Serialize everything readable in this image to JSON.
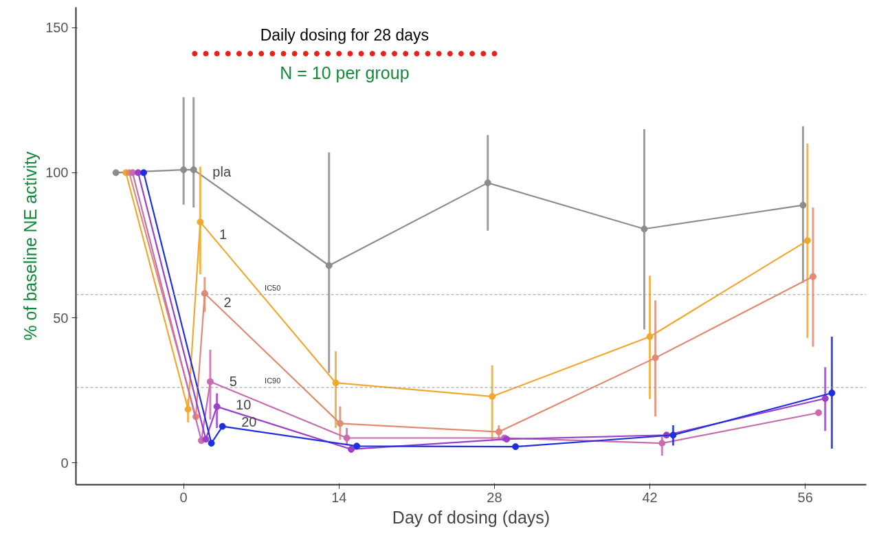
{
  "chart_data": {
    "type": "line",
    "xlabel": "Day of dosing (days)",
    "ylabel": "% of baseline NE activity",
    "annotations": [
      "Daily dosing for 28 days",
      "N = 10 per group"
    ],
    "xlim": [
      -9.7,
      61.5
    ],
    "ylim": [
      -7.5,
      157
    ],
    "xticks": [
      0,
      14,
      28,
      42,
      56
    ],
    "yticks": [
      0,
      50,
      100,
      150
    ],
    "grid": false,
    "marker": "circle",
    "ref_lines": [
      {
        "axis": "y",
        "value": 58,
        "label": "IC50",
        "color": "#999999",
        "line_style": "dashed"
      },
      {
        "axis": "y",
        "value": 26,
        "label": "IC90",
        "color": "#999999",
        "line_style": "dashed"
      }
    ],
    "series": [
      {
        "name": "pla",
        "color": "#8c8c8c",
        "x": [
          -6.1,
          0,
          0.9,
          13.1,
          27.4,
          41.5,
          55.8
        ],
        "values": [
          100,
          101,
          101,
          68,
          96.5,
          80.6,
          88.8
        ],
        "errors": [
          null,
          [
            89,
            126
          ],
          [
            88,
            126
          ],
          [
            31,
            107
          ],
          [
            80,
            113
          ],
          [
            46,
            115
          ],
          [
            62,
            116
          ]
        ]
      },
      {
        "name": "1",
        "color": "#f0a830",
        "x": [
          -5.2,
          0.4,
          1.5,
          13.7,
          27.8,
          42.0,
          56.2
        ],
        "values": [
          100,
          18.5,
          83,
          27.6,
          22.9,
          43.5,
          76.6
        ],
        "errors": [
          null,
          [
            14,
            22
          ],
          [
            65,
            102
          ],
          [
            12,
            38.5
          ],
          [
            7.5,
            33.6
          ],
          [
            22,
            64.5
          ],
          [
            43,
            110
          ]
        ]
      },
      {
        "name": "2",
        "color": "#e08a73",
        "x": [
          -4.9,
          1.1,
          1.9,
          14.1,
          28.4,
          42.5,
          56.7
        ],
        "values": [
          100,
          15.9,
          58.4,
          13.6,
          10.7,
          36.2,
          64.2
        ],
        "errors": [
          null,
          null,
          [
            52,
            64
          ],
          [
            8,
            19.5
          ],
          [
            8,
            13
          ],
          [
            16,
            56
          ],
          [
            40,
            88
          ]
        ]
      },
      {
        "name": "5",
        "color": "#c86bb0",
        "x": [
          -4.6,
          1.6,
          2.4,
          14.7,
          28.9,
          43.1,
          57.2
        ],
        "values": [
          100,
          7.7,
          28,
          8.6,
          8.6,
          6.8,
          17.3
        ],
        "errors": [
          null,
          null,
          [
            15,
            39
          ],
          [
            6,
            12
          ],
          null,
          [
            2.5,
            9
          ],
          null
        ]
      },
      {
        "name": "10",
        "color": "#9b3fc8",
        "x": [
          -4.1,
          2.0,
          3.0,
          15.1,
          29.1,
          43.5,
          57.8
        ],
        "values": [
          100,
          8.2,
          19.4,
          4.7,
          8.2,
          9.6,
          22.2
        ],
        "errors": [
          null,
          null,
          [
            12,
            24
          ],
          null,
          null,
          null,
          [
            11,
            33
          ]
        ]
      },
      {
        "name": "20",
        "color": "#1f2fe0",
        "x": [
          -3.6,
          2.5,
          3.5,
          15.6,
          29.9,
          44.1,
          58.4
        ],
        "values": [
          100,
          6.8,
          12.6,
          5.8,
          5.6,
          9.6,
          24.1
        ],
        "errors": [
          null,
          null,
          null,
          null,
          null,
          [
            6,
            13
          ],
          [
            4.9,
            43.5
          ]
        ]
      },
      {
        "type": "scatter",
        "color": "#e8201a",
        "x": [
          1,
          2,
          3,
          4,
          5,
          6,
          7,
          8,
          9,
          10,
          11,
          12,
          13,
          14,
          15,
          16,
          17,
          18,
          19,
          20,
          21,
          22,
          23,
          24,
          25,
          26,
          27,
          28
        ],
        "values": [
          141,
          141,
          141,
          141,
          141,
          141,
          141,
          141,
          141,
          141,
          141,
          141,
          141,
          141,
          141,
          141,
          141,
          141,
          141,
          141,
          141,
          141,
          141,
          141,
          141,
          141,
          141,
          141
        ]
      }
    ]
  }
}
